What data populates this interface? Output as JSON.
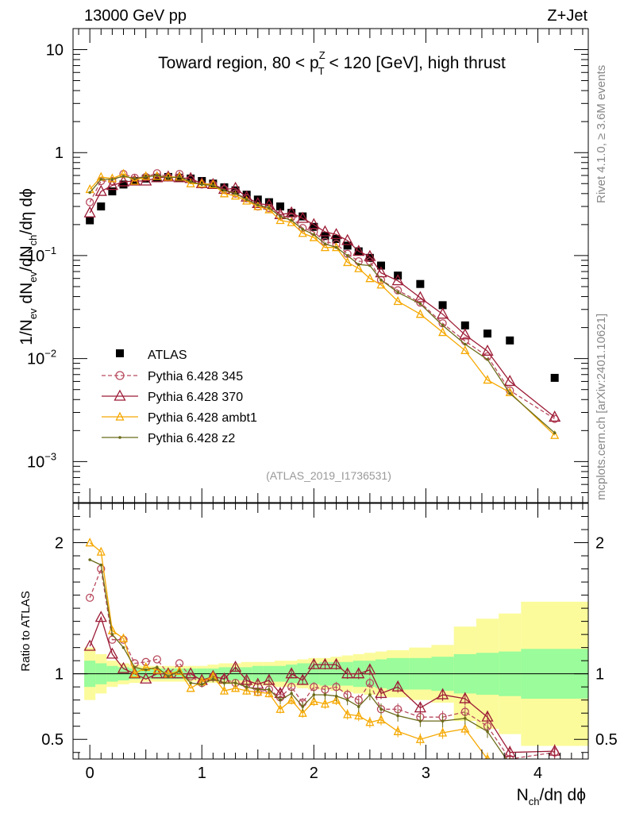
{
  "header": {
    "left": "13000 GeV pp",
    "right": "Z+Jet"
  },
  "side_labels": {
    "rivet": "Rivet 4.1.0, ≥ 3.6M events",
    "mcplots": "mcplots.cern.ch [arXiv:2401.10621]"
  },
  "reference": "(ATLAS_2019_I1736531)",
  "colors": {
    "atlas": "#000000",
    "p345": "#b84a5e",
    "p370": "#9c1b35",
    "ambt1": "#f5a800",
    "z2": "#6b6b1a",
    "band_inner": "#9afc9a",
    "band_outer": "#fbfb9b"
  },
  "chart_data": [
    {
      "type": "line",
      "title": "Toward region, 80 < p_T^Z < 120 [GeV], high thrust",
      "title_parts": {
        "pre": "Toward region, 80 < p",
        "sup": "Z",
        "sub": "T",
        "post": " < 120 [GeV], high thrust"
      },
      "ylabel": "1/N_ev dN_ev/dN_ch/dη dϕ",
      "ylabel_parts": {
        "a": "1/N",
        "a_sub": "ev",
        "b": " dN",
        "b_sub": "ev",
        "c": "/dN",
        "c_sub": "ch",
        "d": "/dη dϕ"
      },
      "yscale": "log",
      "ylim": [
        0.0004,
        16
      ],
      "xlim": [
        -0.15,
        4.45
      ],
      "yticks": [
        {
          "value": 10,
          "label": "10",
          "exp": ""
        },
        {
          "value": 1,
          "label": "1",
          "exp": ""
        },
        {
          "value": 0.1,
          "label": "10",
          "exp": "−1"
        },
        {
          "value": 0.01,
          "label": "10",
          "exp": "−2"
        },
        {
          "value": 0.001,
          "label": "10",
          "exp": "−3"
        }
      ],
      "legend": {
        "position": "mid-left",
        "entries": [
          "ATLAS",
          "Pythia 6.428 345",
          "Pythia 6.428 370",
          "Pythia 6.428 ambt1",
          "Pythia 6.428 z2"
        ]
      },
      "x": [
        0.0,
        0.1,
        0.2,
        0.3,
        0.4,
        0.5,
        0.6,
        0.7,
        0.8,
        0.9,
        1.0,
        1.1,
        1.2,
        1.3,
        1.4,
        1.5,
        1.6,
        1.7,
        1.8,
        1.9,
        2.0,
        2.1,
        2.2,
        2.3,
        2.4,
        2.5,
        2.6,
        2.75,
        2.95,
        3.15,
        3.35,
        3.55,
        3.75,
        4.15
      ],
      "series": [
        {
          "name": "ATLAS",
          "key": "atlas",
          "marker": "square",
          "values": [
            0.22,
            0.3,
            0.42,
            0.49,
            0.53,
            0.56,
            0.57,
            0.58,
            0.57,
            0.56,
            0.53,
            0.5,
            0.46,
            0.43,
            0.39,
            0.35,
            0.33,
            0.3,
            0.26,
            0.24,
            0.19,
            0.155,
            0.145,
            0.125,
            0.11,
            0.095,
            0.08,
            0.064,
            0.053,
            0.033,
            0.021,
            0.0175,
            0.015,
            0.0065
          ]
        },
        {
          "name": "Pythia 6.428 345",
          "key": "p345",
          "marker": "circle",
          "dash": "5,3",
          "values": [
            0.33,
            0.53,
            0.53,
            0.62,
            0.57,
            0.58,
            0.63,
            0.58,
            0.62,
            0.55,
            0.49,
            0.49,
            0.44,
            0.4,
            0.36,
            0.3,
            0.29,
            0.245,
            0.235,
            0.185,
            0.17,
            0.136,
            0.13,
            0.104,
            0.088,
            0.088,
            0.058,
            0.046,
            0.035,
            0.022,
            0.0148,
            0.0105,
            0.0049,
            0.0026
          ]
        },
        {
          "name": "Pythia 6.428 370",
          "key": "p370",
          "marker": "triangle",
          "values": [
            0.26,
            0.42,
            0.48,
            0.52,
            0.53,
            0.53,
            0.57,
            0.58,
            0.57,
            0.56,
            0.5,
            0.49,
            0.44,
            0.45,
            0.37,
            0.32,
            0.31,
            0.25,
            0.26,
            0.23,
            0.2,
            0.17,
            0.16,
            0.14,
            0.11,
            0.098,
            0.068,
            0.057,
            0.039,
            0.027,
            0.017,
            0.0118,
            0.006,
            0.0027
          ]
        },
        {
          "name": "Pythia 6.428 ambt1",
          "key": "ambt1",
          "marker": "triangle-small",
          "values": [
            0.44,
            0.58,
            0.56,
            0.62,
            0.53,
            0.59,
            0.59,
            0.58,
            0.58,
            0.5,
            0.5,
            0.49,
            0.4,
            0.38,
            0.34,
            0.3,
            0.28,
            0.22,
            0.21,
            0.165,
            0.15,
            0.12,
            0.12,
            0.086,
            0.075,
            0.06,
            0.052,
            0.036,
            0.027,
            0.018,
            0.012,
            0.0062,
            0.0047,
            0.0018
          ]
        },
        {
          "name": "Pythia 6.428 z2",
          "key": "z2",
          "marker": "dot",
          "values": [
            0.41,
            0.55,
            0.55,
            0.59,
            0.56,
            0.58,
            0.6,
            0.57,
            0.58,
            0.52,
            0.49,
            0.48,
            0.43,
            0.4,
            0.35,
            0.31,
            0.29,
            0.24,
            0.22,
            0.18,
            0.16,
            0.13,
            0.12,
            0.1,
            0.082,
            0.08,
            0.058,
            0.044,
            0.034,
            0.021,
            0.0138,
            0.0098,
            0.0046,
            0.0019
          ]
        }
      ]
    },
    {
      "type": "line",
      "ylabel": "Ratio to ATLAS",
      "xlabel": "N_ch/dη dϕ",
      "xlabel_parts": {
        "a": "N",
        "a_sub": "ch",
        "b": "/dη dϕ"
      },
      "ylim": [
        0.35,
        2.3
      ],
      "xlim": [
        -0.15,
        4.45
      ],
      "yticks": [
        {
          "value": 0.5,
          "label": "0.5"
        },
        {
          "value": 1,
          "label": "1"
        },
        {
          "value": 2,
          "label": "2"
        }
      ],
      "xticks": [
        {
          "value": 0,
          "label": "0"
        },
        {
          "value": 1,
          "label": "1"
        },
        {
          "value": 2,
          "label": "2"
        },
        {
          "value": 3,
          "label": "3"
        },
        {
          "value": 4,
          "label": "4"
        }
      ],
      "x": [
        0.0,
        0.1,
        0.2,
        0.3,
        0.4,
        0.5,
        0.6,
        0.7,
        0.8,
        0.9,
        1.0,
        1.1,
        1.2,
        1.3,
        1.4,
        1.5,
        1.6,
        1.7,
        1.8,
        1.9,
        2.0,
        2.1,
        2.2,
        2.3,
        2.4,
        2.5,
        2.6,
        2.75,
        2.95,
        3.15,
        3.35,
        3.55,
        3.75,
        4.15
      ],
      "band_edges": [
        -0.05,
        0.05,
        0.15,
        0.25,
        0.35,
        0.45,
        0.55,
        0.65,
        0.75,
        0.85,
        0.95,
        1.05,
        1.15,
        1.25,
        1.35,
        1.45,
        1.55,
        1.65,
        1.75,
        1.85,
        1.95,
        2.05,
        2.15,
        2.25,
        2.35,
        2.45,
        2.55,
        2.65,
        2.85,
        3.05,
        3.25,
        3.45,
        3.65,
        3.85,
        4.45
      ],
      "band_inner": [
        0.1,
        0.08,
        0.06,
        0.05,
        0.04,
        0.04,
        0.04,
        0.04,
        0.04,
        0.04,
        0.04,
        0.04,
        0.05,
        0.05,
        0.05,
        0.06,
        0.06,
        0.06,
        0.07,
        0.08,
        0.08,
        0.09,
        0.09,
        0.09,
        0.1,
        0.1,
        0.11,
        0.12,
        0.12,
        0.13,
        0.15,
        0.16,
        0.17,
        0.19
      ],
      "band_outer": [
        0.2,
        0.15,
        0.1,
        0.08,
        0.07,
        0.06,
        0.06,
        0.06,
        0.06,
        0.06,
        0.06,
        0.07,
        0.08,
        0.08,
        0.09,
        0.09,
        0.09,
        0.1,
        0.1,
        0.11,
        0.12,
        0.12,
        0.13,
        0.14,
        0.15,
        0.16,
        0.17,
        0.18,
        0.2,
        0.22,
        0.36,
        0.42,
        0.46,
        0.55
      ],
      "series": [
        {
          "name": "Pythia 6.428 345",
          "key": "p345",
          "values": [
            1.58,
            1.8,
            1.26,
            1.26,
            1.08,
            1.09,
            1.11,
            1.0,
            1.08,
            0.98,
            0.93,
            0.98,
            0.96,
            0.93,
            0.92,
            0.86,
            0.88,
            0.82,
            0.9,
            0.78,
            0.9,
            0.88,
            0.9,
            0.84,
            0.8,
            0.93,
            0.73,
            0.73,
            0.67,
            0.67,
            0.71,
            0.6,
            0.35,
            0.4
          ]
        },
        {
          "name": "Pythia 6.428 370",
          "key": "p370",
          "values": [
            1.21,
            1.43,
            1.15,
            1.04,
            1.0,
            0.96,
            1.0,
            1.0,
            1.0,
            1.0,
            0.95,
            0.98,
            0.96,
            1.05,
            0.95,
            0.92,
            0.95,
            0.85,
            1.0,
            0.95,
            1.07,
            1.07,
            1.07,
            1.0,
            1.0,
            1.03,
            0.85,
            0.9,
            0.74,
            0.84,
            0.81,
            0.67,
            0.4,
            0.41
          ]
        },
        {
          "name": "Pythia 6.428 ambt1",
          "key": "ambt1",
          "values": [
            2.0,
            1.93,
            1.33,
            1.27,
            1.0,
            1.05,
            1.03,
            1.0,
            1.02,
            0.89,
            0.94,
            0.98,
            0.87,
            0.89,
            0.87,
            0.86,
            0.85,
            0.73,
            0.8,
            0.7,
            0.79,
            0.77,
            0.8,
            0.69,
            0.68,
            0.63,
            0.65,
            0.56,
            0.5,
            0.55,
            0.58,
            0.35,
            0.31,
            0.28
          ]
        },
        {
          "name": "Pythia 6.428 z2",
          "key": "z2",
          "values": [
            1.87,
            1.83,
            1.3,
            1.2,
            1.05,
            1.03,
            1.05,
            0.98,
            1.02,
            0.93,
            0.92,
            0.96,
            0.93,
            0.93,
            0.9,
            0.88,
            0.88,
            0.8,
            0.85,
            0.75,
            0.84,
            0.84,
            0.83,
            0.8,
            0.75,
            0.84,
            0.73,
            0.68,
            0.64,
            0.64,
            0.66,
            0.56,
            0.31,
            0.29
          ]
        }
      ]
    }
  ]
}
